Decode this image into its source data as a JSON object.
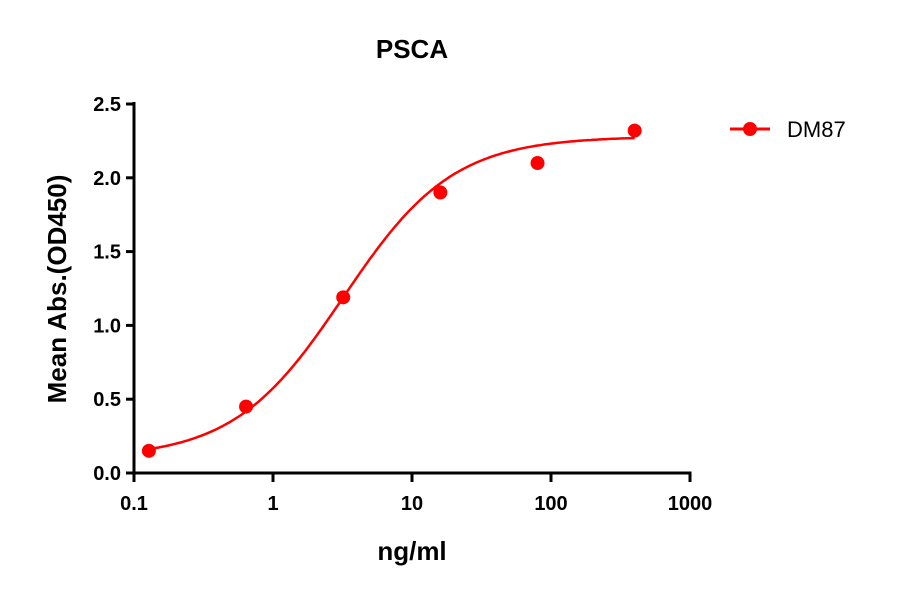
{
  "chart_data": {
    "type": "scatter",
    "title": "PSCA",
    "xlabel": "ng/ml",
    "ylabel": "Mean Abs.(OD450)",
    "xscale": "log",
    "xlim": [
      0.1,
      1000
    ],
    "ylim": [
      0,
      2.5
    ],
    "xticks": [
      "0.1",
      "1",
      "10",
      "100",
      "1000"
    ],
    "xtick_values": [
      0.1,
      1,
      10,
      100,
      1000
    ],
    "yticks": [
      "0.0",
      "0.5",
      "1.0",
      "1.5",
      "2.0",
      "2.5"
    ],
    "ytick_values": [
      0,
      0.5,
      1.0,
      1.5,
      2.0,
      2.5
    ],
    "grid": false,
    "legend_position": "top-right",
    "series": [
      {
        "name": "DM87",
        "color": "#ff0000",
        "marker": "circle",
        "fit_line": "sigmoidal curve",
        "x": [
          0.128,
          0.64,
          3.2,
          16,
          80,
          400
        ],
        "y": [
          0.15,
          0.45,
          1.19,
          1.9,
          2.1,
          2.32
        ]
      }
    ]
  }
}
